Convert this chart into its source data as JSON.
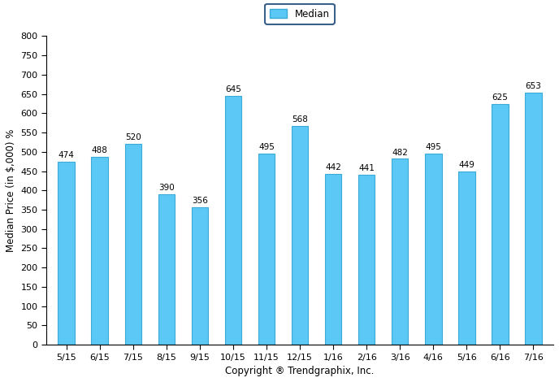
{
  "categories": [
    "5/15",
    "6/15",
    "7/15",
    "8/15",
    "9/15",
    "10/15",
    "11/15",
    "12/15",
    "1/16",
    "2/16",
    "3/16",
    "4/16",
    "5/16",
    "6/16",
    "7/16"
  ],
  "values": [
    474,
    488,
    520,
    390,
    356,
    645,
    495,
    568,
    442,
    441,
    482,
    495,
    449,
    625,
    653
  ],
  "bar_color": "#5BC8F5",
  "bar_edge_color": "#3AAAD8",
  "ylabel": "Median Price (in $,000) %",
  "xlabel": "Copyright ® Trendgraphix, Inc.",
  "ylim": [
    0,
    800
  ],
  "yticks": [
    0,
    50,
    100,
    150,
    200,
    250,
    300,
    350,
    400,
    450,
    500,
    550,
    600,
    650,
    700,
    750,
    800
  ],
  "legend_label": "Median",
  "legend_face_color": "#5BC8F5",
  "legend_edge_color": "#3A5F8A",
  "bar_width": 0.5,
  "label_fontsize": 7.5,
  "axis_fontsize": 8.5,
  "tick_fontsize": 8
}
